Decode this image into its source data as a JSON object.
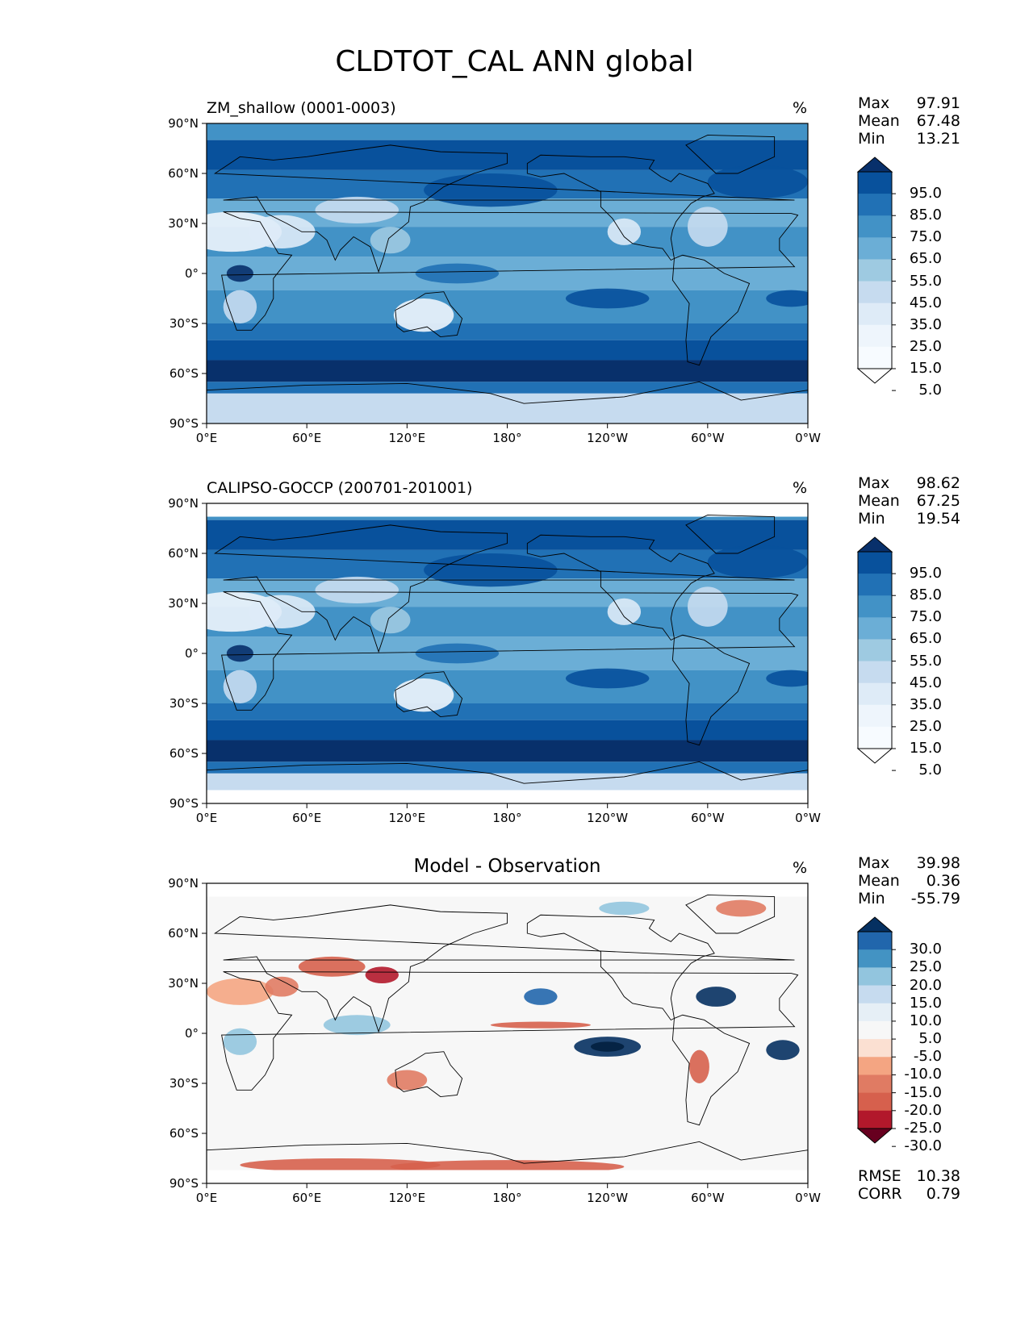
{
  "title": "CLDTOT_CAL ANN global",
  "lat_ticks": [
    "90°N",
    "60°N",
    "30°N",
    "0°",
    "30°S",
    "60°S",
    "90°S"
  ],
  "lon_ticks": [
    "0°E",
    "60°E",
    "120°E",
    "180°",
    "120°W",
    "60°W",
    "0°W"
  ],
  "panels": [
    {
      "id": "model",
      "title": "ZM_shallow (0001-0003)",
      "unit": "%",
      "stats": [
        {
          "label": "Max",
          "value": "97.91"
        },
        {
          "label": "Mean",
          "value": "67.48"
        },
        {
          "label": "Min",
          "value": "13.21"
        }
      ],
      "colorbar": {
        "labels": [
          "95.0",
          "85.0",
          "75.0",
          "65.0",
          "55.0",
          "45.0",
          "35.0",
          "25.0",
          "15.0",
          "5.0"
        ],
        "colors": [
          "#08306b",
          "#08519c",
          "#2171b5",
          "#4292c6",
          "#6baed6",
          "#9ecae1",
          "#c6dbef",
          "#deebf7",
          "#eef5fc",
          "#f7fbff",
          "#ffffff"
        ]
      }
    },
    {
      "id": "obs",
      "title": "CALIPSO-GOCCP (200701-201001)",
      "unit": "%",
      "stats": [
        {
          "label": "Max",
          "value": "98.62"
        },
        {
          "label": "Mean",
          "value": "67.25"
        },
        {
          "label": "Min",
          "value": "19.54"
        }
      ],
      "colorbar": {
        "labels": [
          "95.0",
          "85.0",
          "75.0",
          "65.0",
          "55.0",
          "45.0",
          "35.0",
          "25.0",
          "15.0",
          "5.0"
        ],
        "colors": [
          "#08306b",
          "#08519c",
          "#2171b5",
          "#4292c6",
          "#6baed6",
          "#9ecae1",
          "#c6dbef",
          "#deebf7",
          "#eef5fc",
          "#f7fbff",
          "#ffffff"
        ]
      }
    },
    {
      "id": "diff",
      "title": "Model - Observation",
      "unit": "%",
      "stats": [
        {
          "label": "Max",
          "value": "39.98"
        },
        {
          "label": "Mean",
          "value": "0.36"
        },
        {
          "label": "Min",
          "value": "-55.79"
        }
      ],
      "metrics": [
        {
          "label": "RMSE",
          "value": "10.38"
        },
        {
          "label": "CORR",
          "value": "0.79"
        }
      ],
      "colorbar": {
        "labels": [
          "30.0",
          "25.0",
          "20.0",
          "15.0",
          "10.0",
          "5.0",
          "-5.0",
          "-10.0",
          "-15.0",
          "-20.0",
          "-25.0",
          "-30.0"
        ],
        "colors": [
          "#053061",
          "#2166ac",
          "#4393c3",
          "#92c5de",
          "#c6dbef",
          "#e6eff6",
          "#f7f7f7",
          "#fbe0d2",
          "#f4a582",
          "#e07b63",
          "#d6604d",
          "#b2182b",
          "#67001f"
        ]
      }
    }
  ]
}
